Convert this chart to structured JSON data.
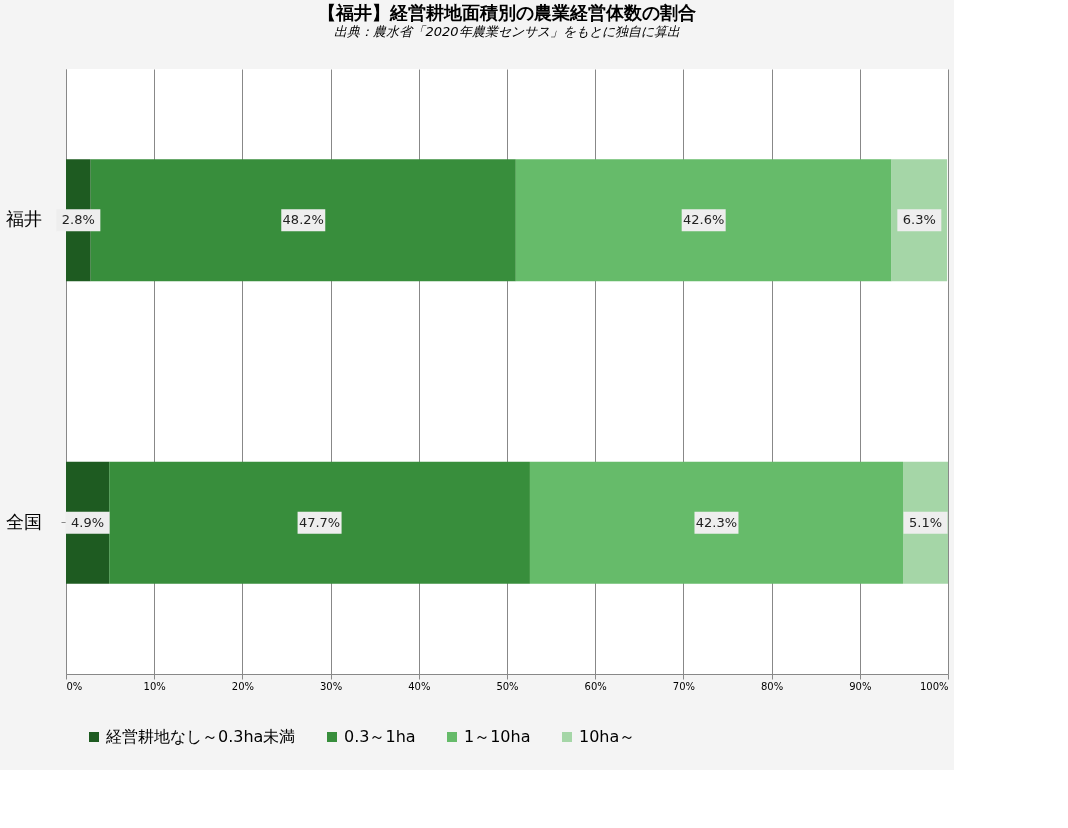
{
  "chart_data": {
    "type": "bar",
    "orientation": "horizontal",
    "stacked": true,
    "title": "【福井】経営耕地面積別の農業経営体数の割合",
    "categories": [
      "福井",
      "全国"
    ],
    "series": [
      {
        "name": "経営耕地なし～0.3ha未満",
        "color": "#1e5b21",
        "values": [
          2.8,
          4.9
        ]
      },
      {
        "name": "0.3～1ha",
        "color": "#388e3c",
        "values": [
          48.2,
          47.7
        ]
      },
      {
        "name": "1～10ha",
        "color": "#66bb6a",
        "values": [
          42.6,
          42.3
        ]
      },
      {
        "name": "10ha～",
        "color": "#a5d6a7",
        "values": [
          6.3,
          5.1
        ]
      }
    ],
    "xlim": [
      0,
      100
    ],
    "xticks": [
      {
        "value": 0,
        "label": "0%"
      },
      {
        "value": 10,
        "label": "10%"
      },
      {
        "value": 20,
        "label": "20%"
      },
      {
        "value": 30,
        "label": "30%"
      },
      {
        "value": 40,
        "label": "40%"
      },
      {
        "value": 50,
        "label": "50%"
      },
      {
        "value": 60,
        "label": "60%"
      },
      {
        "value": 70,
        "label": "70%"
      },
      {
        "value": 80,
        "label": "80%"
      },
      {
        "value": 90,
        "label": "90%"
      },
      {
        "value": 100,
        "label": "100%"
      }
    ],
    "value_labels": [
      [
        "2.8%",
        "4.9%"
      ],
      [
        "48.2%",
        "47.7%"
      ],
      [
        "42.6%",
        "42.3%"
      ],
      [
        "6.3%",
        "5.1%"
      ]
    ],
    "grid": "x",
    "legend": "bottom",
    "annotations": [
      "出典：農水省「2020年農業センサス」をもとに独自に算出"
    ]
  }
}
